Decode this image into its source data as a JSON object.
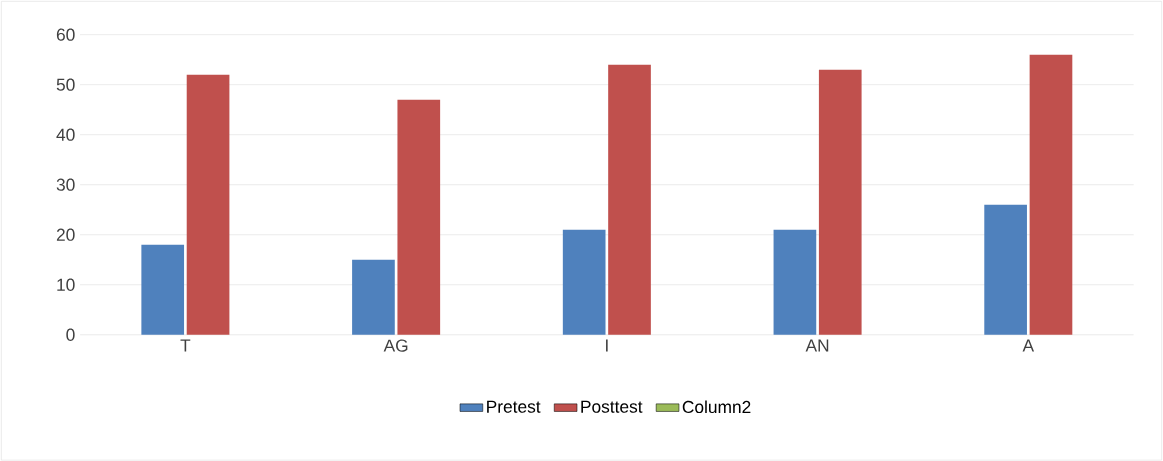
{
  "chart_data": {
    "type": "bar",
    "categories": [
      "T",
      "AG",
      "I",
      "AN",
      "A"
    ],
    "series": [
      {
        "name": "Pretest",
        "color": "#4f81bd",
        "values": [
          18,
          15,
          21,
          21,
          26
        ]
      },
      {
        "name": "Posttest",
        "color": "#c0504d",
        "values": [
          52,
          47,
          54,
          53,
          56
        ]
      },
      {
        "name": "Column2",
        "color": "#9bbb59",
        "values": [
          null,
          null,
          null,
          null,
          null
        ]
      }
    ],
    "ylim": [
      0,
      60
    ],
    "yticks": [
      0,
      10,
      20,
      30,
      40,
      50,
      60
    ],
    "grid": "y",
    "legend": "bottom"
  }
}
